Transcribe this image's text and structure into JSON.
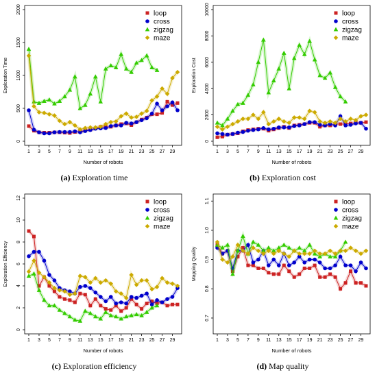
{
  "captions": [
    {
      "letter": "(a)",
      "text": " Exploration time"
    },
    {
      "letter": "(b)",
      "text": " Exploration cost"
    },
    {
      "letter": "(c)",
      "text": " Exploration efficiency"
    },
    {
      "letter": "(d)",
      "text": " Map quality"
    }
  ],
  "chart_data": [
    {
      "type": "line",
      "xlabel": "Number of robots",
      "ylabel": "Exploration Time",
      "xlim": [
        1,
        30
      ],
      "ylim": [
        0,
        2000
      ],
      "yticks": [
        "0",
        "500",
        "1000",
        "1500",
        "2000"
      ],
      "xticks": [
        "1",
        "3",
        "5",
        "7",
        "9",
        "11",
        "13",
        "15",
        "17",
        "19",
        "21",
        "23",
        "25",
        "27",
        "29"
      ],
      "legend": "top-right",
      "series": [
        {
          "name": "loop",
          "color": "#cc2222",
          "values": [
            230,
            160,
            135,
            130,
            130,
            135,
            135,
            130,
            125,
            140,
            145,
            165,
            175,
            195,
            220,
            215,
            220,
            240,
            260,
            270,
            245,
            290,
            330,
            360,
            410,
            410,
            430,
            600,
            550,
            580
          ]
        },
        {
          "name": "cross",
          "color": "#0000cc",
          "values": [
            470,
            175,
            135,
            120,
            120,
            135,
            140,
            140,
            140,
            150,
            135,
            155,
            170,
            190,
            195,
            200,
            230,
            240,
            240,
            280,
            270,
            290,
            320,
            350,
            420,
            570,
            470,
            530,
            590,
            470
          ]
        },
        {
          "name": "zigzag",
          "color": "#33cc00",
          "values": [
            1400,
            600,
            580,
            610,
            630,
            570,
            610,
            680,
            780,
            980,
            500,
            550,
            720,
            980,
            600,
            1100,
            1150,
            1120,
            1320,
            1100,
            1050,
            1190,
            1230,
            1300,
            1120,
            1080,
            null,
            null,
            null,
            null
          ]
        },
        {
          "name": "maze",
          "color": "#ccaa00",
          "values": [
            1300,
            530,
            440,
            430,
            410,
            390,
            310,
            260,
            290,
            240,
            180,
            200,
            210,
            210,
            220,
            260,
            290,
            300,
            380,
            420,
            360,
            370,
            420,
            460,
            620,
            680,
            800,
            720,
            960,
            1050
          ]
        }
      ]
    },
    {
      "type": "line",
      "xlabel": "Number of robots",
      "ylabel": "Exploration Cost",
      "xlim": [
        1,
        30
      ],
      "ylim": [
        0,
        10000
      ],
      "yticks": [
        "0",
        "2000",
        "4000",
        "6000",
        "8000",
        "10000"
      ],
      "xticks": [
        "1",
        "3",
        "5",
        "7",
        "9",
        "11",
        "13",
        "15",
        "17",
        "19",
        "21",
        "23",
        "25",
        "27",
        "29"
      ],
      "legend": "top-right",
      "series": [
        {
          "name": "loop",
          "color": "#cc2222",
          "values": [
            300,
            350,
            500,
            550,
            600,
            750,
            850,
            900,
            950,
            950,
            800,
            900,
            1000,
            1100,
            1000,
            1200,
            1250,
            1300,
            1400,
            1400,
            1100,
            1200,
            1200,
            1300,
            1300,
            1300,
            1350,
            1400,
            1400,
            1450
          ]
        },
        {
          "name": "cross",
          "color": "#0000cc",
          "values": [
            600,
            550,
            500,
            550,
            650,
            700,
            800,
            850,
            900,
            1000,
            900,
            950,
            1050,
            1050,
            1050,
            1150,
            1200,
            1300,
            1450,
            1450,
            1250,
            1200,
            1300,
            1200,
            1900,
            1200,
            1250,
            1350,
            1400,
            950
          ]
        },
        {
          "name": "zigzag",
          "color": "#33cc00",
          "values": [
            1400,
            1200,
            1700,
            2300,
            2800,
            2900,
            3500,
            4300,
            6000,
            7700,
            3700,
            4600,
            5500,
            6700,
            4000,
            6300,
            7300,
            6600,
            7600,
            6200,
            5000,
            4800,
            5200,
            4100,
            3400,
            3000,
            null,
            null,
            null,
            null
          ]
        },
        {
          "name": "maze",
          "color": "#ccaa00",
          "values": [
            1100,
            900,
            1100,
            1300,
            1500,
            1700,
            1700,
            2000,
            1700,
            2200,
            1300,
            1500,
            1700,
            1500,
            1400,
            1800,
            1800,
            1700,
            2300,
            2200,
            1500,
            1400,
            1500,
            1400,
            1700,
            1500,
            1700,
            1600,
            1900,
            2000
          ]
        }
      ]
    },
    {
      "type": "line",
      "xlabel": "Number of robots",
      "ylabel": "Exploration Efficiency",
      "xlim": [
        1,
        30
      ],
      "ylim": [
        0,
        12
      ],
      "yticks": [
        "0",
        "2",
        "4",
        "6",
        "8",
        "10",
        "12"
      ],
      "xticks": [
        "1",
        "3",
        "5",
        "7",
        "9",
        "11",
        "13",
        "15",
        "17",
        "19",
        "21",
        "23",
        "25",
        "27",
        "29"
      ],
      "legend": "top-right",
      "series": [
        {
          "name": "loop",
          "color": "#cc2222",
          "values": [
            9,
            8.5,
            4,
            4.8,
            4,
            3.5,
            3,
            2.8,
            2.7,
            2.5,
            3.3,
            3.2,
            2.2,
            2.8,
            2.2,
            1.9,
            1.8,
            2.2,
            1.7,
            2.0,
            2.8,
            2.3,
            1.9,
            2.4,
            2.6,
            2.4,
            2.5,
            2.2,
            2.3,
            2.3
          ]
        },
        {
          "name": "cross",
          "color": "#0000cc",
          "values": [
            6.7,
            7.1,
            7.1,
            6.3,
            5.0,
            4.5,
            3.8,
            3.6,
            3.5,
            3.3,
            3.9,
            4.0,
            3.8,
            3.4,
            3.0,
            2.6,
            3.0,
            2.4,
            2.5,
            2.4,
            3.0,
            2.9,
            3.1,
            3.3,
            2.3,
            2.7,
            2.5,
            2.8,
            3.0,
            3.8
          ]
        },
        {
          "name": "zigzag",
          "color": "#33cc00",
          "values": [
            4.9,
            5.1,
            3.6,
            2.7,
            2.2,
            2.2,
            1.8,
            1.5,
            1.2,
            0.9,
            0.8,
            1.7,
            1.5,
            1.2,
            1.0,
            1.6,
            1.3,
            1.2,
            1.0,
            1.2,
            1.3,
            1.4,
            1.3,
            1.6,
            2.0,
            2.2,
            null,
            null,
            null,
            null
          ]
        },
        {
          "name": "maze",
          "color": "#ccaa00",
          "values": [
            5.3,
            6.3,
            5.2,
            4.8,
            4.3,
            3.8,
            3.6,
            3.5,
            3.2,
            3.3,
            4.9,
            4.8,
            4.3,
            4.7,
            4.3,
            4.5,
            4.2,
            3.5,
            3.3,
            2.9,
            5.0,
            4.1,
            4.5,
            4.5,
            3.7,
            3.9,
            4.7,
            4.3,
            4.2,
            4.0
          ]
        }
      ]
    },
    {
      "type": "line",
      "xlabel": "Number of robots",
      "ylabel": "Mapping Quality",
      "xlim": [
        1,
        30
      ],
      "ylim": [
        0.66,
        1.11
      ],
      "yticks": [
        "0.7",
        "0.8",
        "0.9",
        "1.0",
        "1.1"
      ],
      "ytickvalues": [
        0.7,
        0.8,
        0.9,
        1.0,
        1.1
      ],
      "xticks": [
        "1",
        "3",
        "5",
        "7",
        "9",
        "11",
        "13",
        "15",
        "17",
        "19",
        "21",
        "23",
        "25",
        "27",
        "29"
      ],
      "legend": "top-right",
      "series": [
        {
          "name": "loop",
          "color": "#cc2222",
          "values": [
            0.95,
            0.92,
            0.93,
            0.86,
            0.91,
            0.94,
            0.88,
            0.88,
            0.87,
            0.87,
            0.855,
            0.85,
            0.85,
            0.88,
            0.86,
            0.84,
            0.85,
            0.87,
            0.87,
            0.88,
            0.84,
            0.84,
            0.85,
            0.84,
            0.8,
            0.82,
            0.86,
            0.82,
            0.82,
            0.81
          ]
        },
        {
          "name": "cross",
          "color": "#0000cc",
          "values": [
            0.94,
            0.92,
            0.93,
            0.87,
            0.93,
            0.93,
            0.95,
            0.89,
            0.9,
            0.93,
            0.88,
            0.9,
            0.88,
            0.92,
            0.88,
            0.89,
            0.91,
            0.89,
            0.9,
            0.9,
            0.89,
            0.87,
            0.87,
            0.88,
            0.91,
            0.88,
            0.88,
            0.86,
            0.89,
            0.87
          ]
        },
        {
          "name": "zigzag",
          "color": "#33cc00",
          "values": [
            0.95,
            0.94,
            0.95,
            0.85,
            0.93,
            0.98,
            0.92,
            0.96,
            0.95,
            0.93,
            0.94,
            0.93,
            0.94,
            0.95,
            0.94,
            0.93,
            0.94,
            0.93,
            0.95,
            0.92,
            0.91,
            0.92,
            0.91,
            0.91,
            0.93,
            0.96,
            null,
            null,
            null,
            null
          ]
        },
        {
          "name": "maze",
          "color": "#ccaa00",
          "values": [
            0.96,
            0.9,
            0.89,
            0.91,
            0.95,
            0.93,
            0.92,
            0.94,
            0.93,
            0.92,
            0.93,
            0.92,
            0.93,
            0.92,
            0.91,
            0.93,
            0.92,
            0.92,
            0.92,
            0.93,
            0.92,
            0.92,
            0.93,
            0.92,
            0.93,
            0.93,
            0.94,
            0.93,
            0.92,
            0.93
          ]
        }
      ]
    }
  ],
  "marker_shapes": {
    "loop": "square",
    "cross": "circle",
    "zigzag": "triangle",
    "maze": "diamond"
  }
}
